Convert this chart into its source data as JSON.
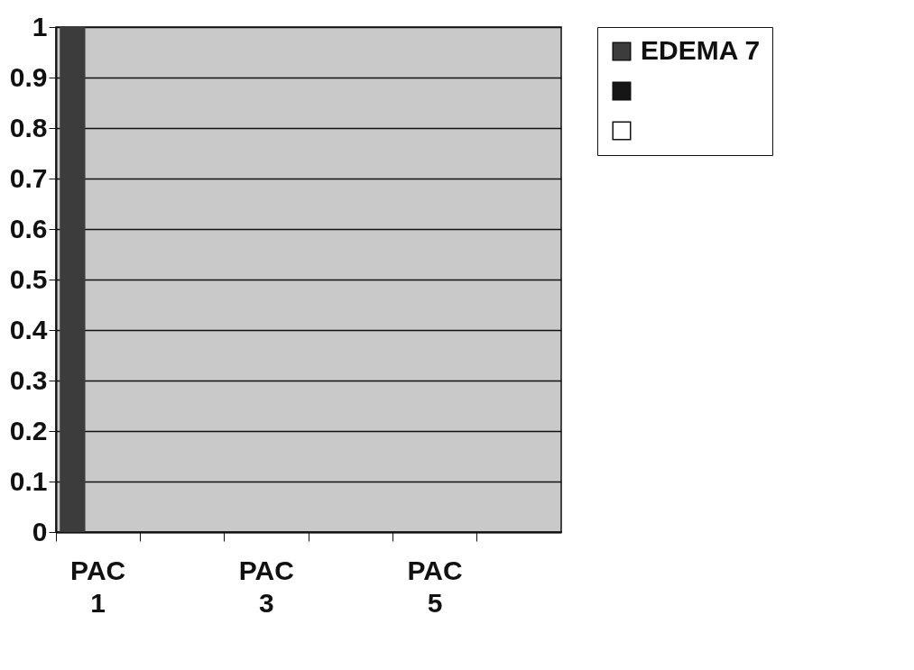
{
  "chart_data": {
    "type": "bar",
    "categories": [
      "PAC 1",
      null,
      "PAC 3",
      null,
      "PAC 5",
      null
    ],
    "series": [
      {
        "name": "EDEMA 7",
        "color": "#3c3c3c",
        "values": [
          1,
          0,
          0,
          0,
          0,
          0
        ]
      },
      {
        "color": "#161616",
        "values": [
          0,
          0,
          0,
          0,
          0,
          0
        ]
      },
      {
        "color": "#ffffff",
        "values": [
          0,
          0,
          0,
          0,
          0,
          0
        ]
      }
    ],
    "ylim": [
      0,
      1
    ],
    "yticks": [
      0,
      0.1,
      0.2,
      0.3,
      0.4,
      0.5,
      0.6,
      0.7,
      0.8,
      0.9,
      1
    ],
    "grid": "y",
    "legend": "right"
  }
}
